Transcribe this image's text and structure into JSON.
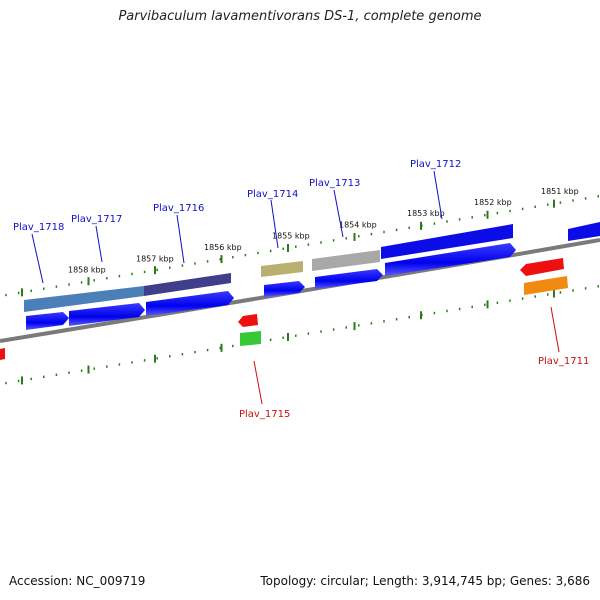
{
  "title": "Parvibaculum lavamentivorans DS-1, complete genome",
  "footer": {
    "accession": "Accession: NC_009719",
    "summary": "Topology: circular; Length: 3,914,745 bp; Genes: 3,686"
  },
  "colors": {
    "backbone": "#808080",
    "forward_cds": "#0a0af0",
    "reverse_cds": "#f00a0a",
    "forward_label": "#1010c8",
    "reverse_label": "#c81010",
    "tick": "#2a7a1a"
  },
  "ticks": [
    {
      "label": "1858 kbp",
      "kbp": 1858
    },
    {
      "label": "1857 kbp",
      "kbp": 1857
    },
    {
      "label": "1856 kbp",
      "kbp": 1856
    },
    {
      "label": "1855 kbp",
      "kbp": 1855
    },
    {
      "label": "1854 kbp",
      "kbp": 1854
    },
    {
      "label": "1853 kbp",
      "kbp": 1853
    },
    {
      "label": "1852 kbp",
      "kbp": 1852
    },
    {
      "label": "1851 kbp",
      "kbp": 1851
    }
  ],
  "genes": [
    {
      "name": "Plav_1718",
      "strand": "forward"
    },
    {
      "name": "Plav_1717",
      "strand": "forward"
    },
    {
      "name": "Plav_1716",
      "strand": "forward"
    },
    {
      "name": "Plav_1715",
      "strand": "reverse"
    },
    {
      "name": "Plav_1714",
      "strand": "forward"
    },
    {
      "name": "Plav_1713",
      "strand": "forward"
    },
    {
      "name": "Plav_1712",
      "strand": "forward"
    },
    {
      "name": "Plav_1711",
      "strand": "reverse"
    }
  ]
}
